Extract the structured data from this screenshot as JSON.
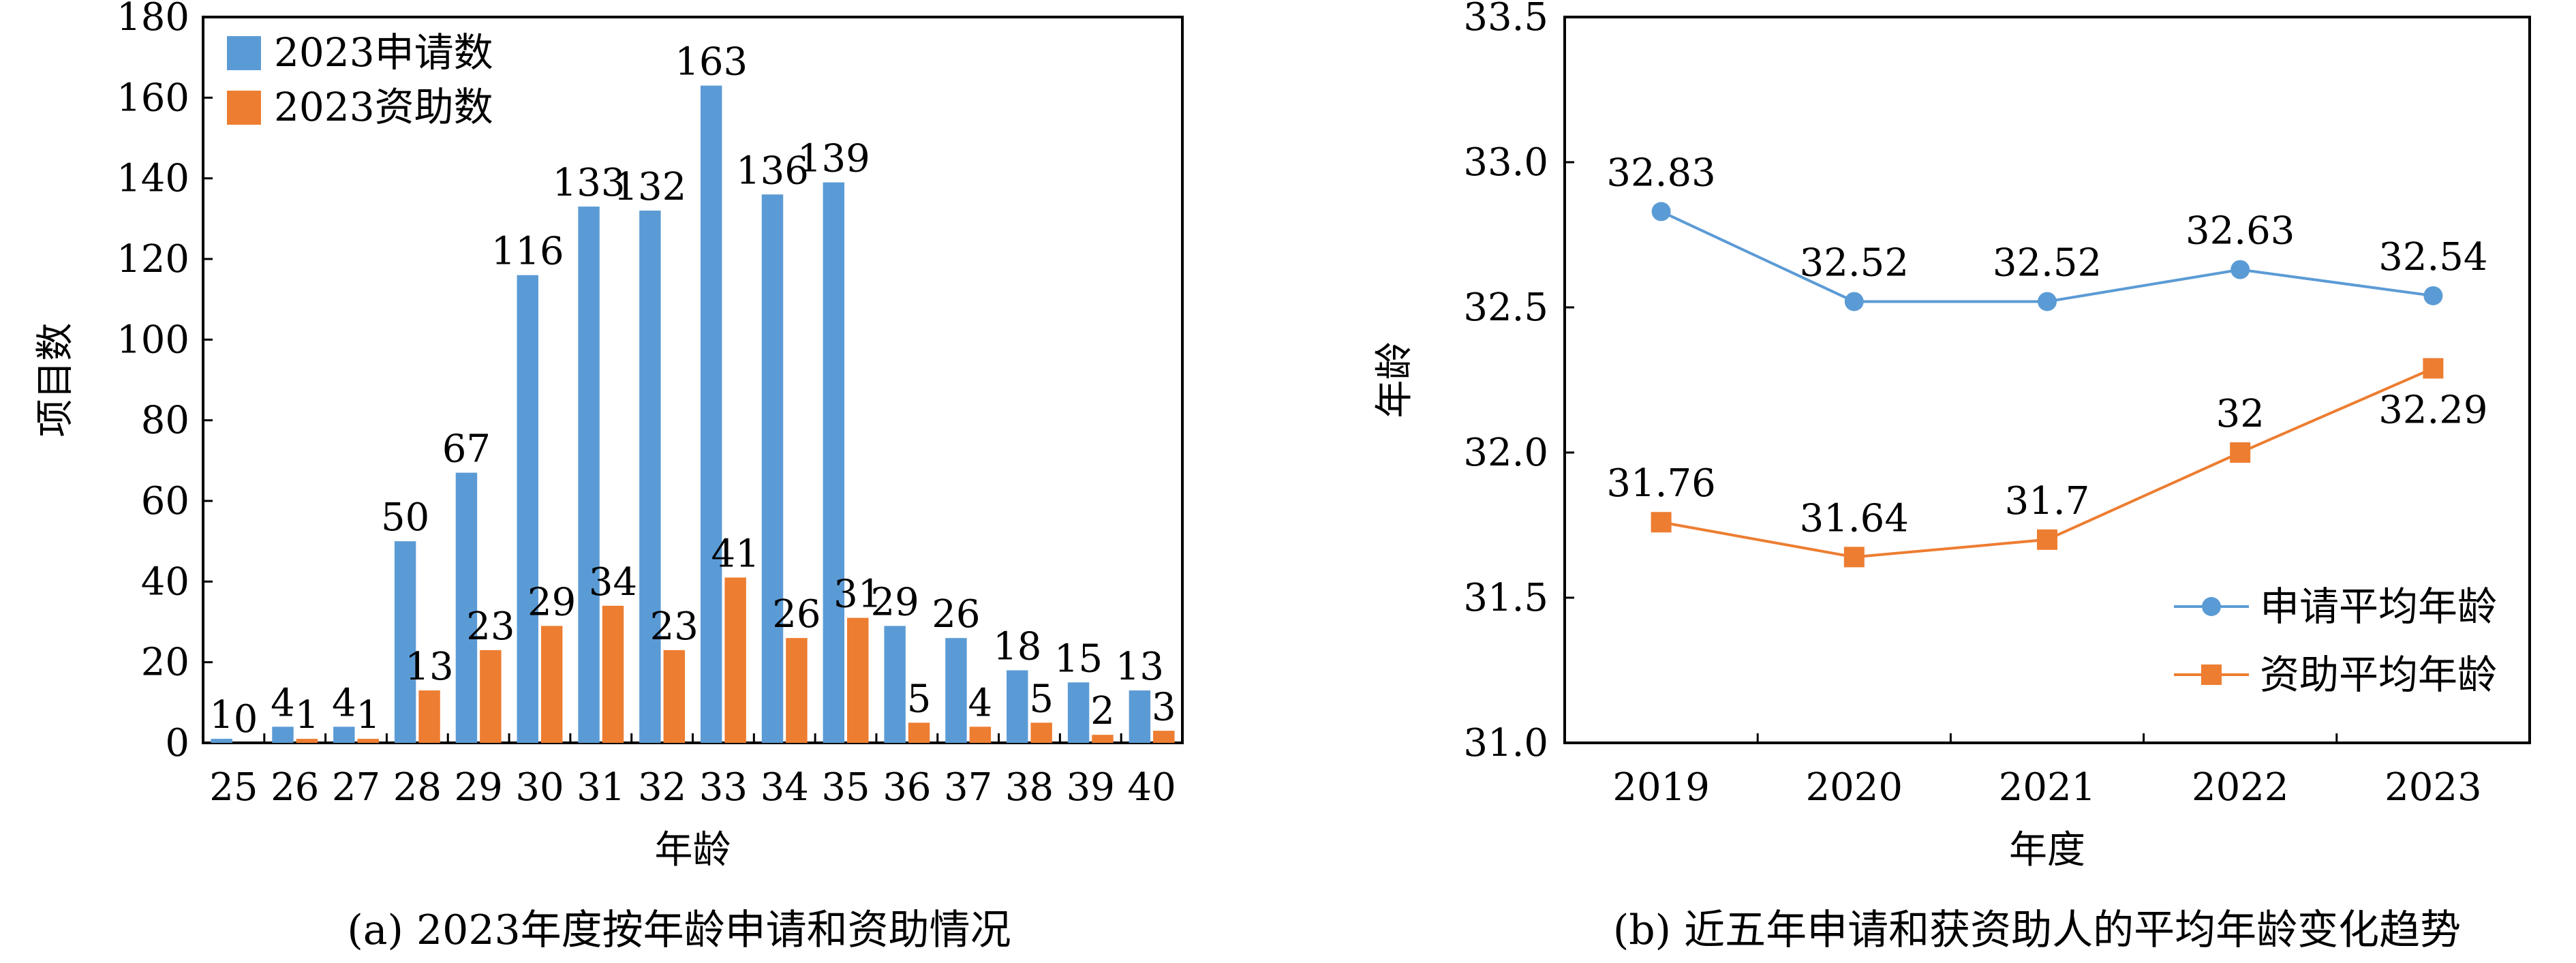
{
  "colors": {
    "apply": "#5b9bd5",
    "fund": "#ed7d31",
    "axis": "#000000"
  },
  "chart_data": [
    {
      "type": "bar",
      "caption": "(a) 2023年度按年龄申请和资助情况",
      "xlabel": "年龄",
      "ylabel": "项目数",
      "ylim": [
        0,
        180
      ],
      "yticks": [
        0,
        20,
        40,
        60,
        80,
        100,
        120,
        140,
        160,
        180
      ],
      "categories": [
        "25",
        "26",
        "27",
        "28",
        "29",
        "30",
        "31",
        "32",
        "33",
        "34",
        "35",
        "36",
        "37",
        "38",
        "39",
        "40"
      ],
      "series": [
        {
          "name": "2023申请数",
          "values": [
            1,
            4,
            4,
            50,
            67,
            116,
            133,
            132,
            163,
            136,
            139,
            29,
            26,
            18,
            15,
            13
          ]
        },
        {
          "name": "2023资助数",
          "values": [
            0,
            1,
            1,
            13,
            23,
            29,
            34,
            23,
            41,
            26,
            31,
            5,
            4,
            5,
            2,
            3
          ]
        }
      ],
      "legend": "top-left",
      "grid": false
    },
    {
      "type": "line",
      "caption": "(b) 近五年申请和获资助人的平均年龄变化趋势",
      "xlabel": "年度",
      "ylabel": "年龄",
      "ylim": [
        31.0,
        33.5
      ],
      "yticks": [
        "31.0",
        "31.5",
        "32.0",
        "32.5",
        "33.0",
        "33.5"
      ],
      "categories": [
        "2019",
        "2020",
        "2021",
        "2022",
        "2023"
      ],
      "series": [
        {
          "name": "申请平均年龄",
          "values": [
            32.83,
            32.52,
            32.52,
            32.63,
            32.54
          ],
          "labels": [
            "32.83",
            "32.52",
            "32.52",
            "32.63",
            "32.54"
          ],
          "marker": "circle"
        },
        {
          "name": "资助平均年龄",
          "values": [
            31.76,
            31.64,
            31.7,
            32.0,
            32.29
          ],
          "labels": [
            "31.76",
            "31.64",
            "31.7",
            "32",
            "32.29"
          ],
          "marker": "square"
        }
      ],
      "legend": "bottom-right",
      "grid": false
    }
  ]
}
